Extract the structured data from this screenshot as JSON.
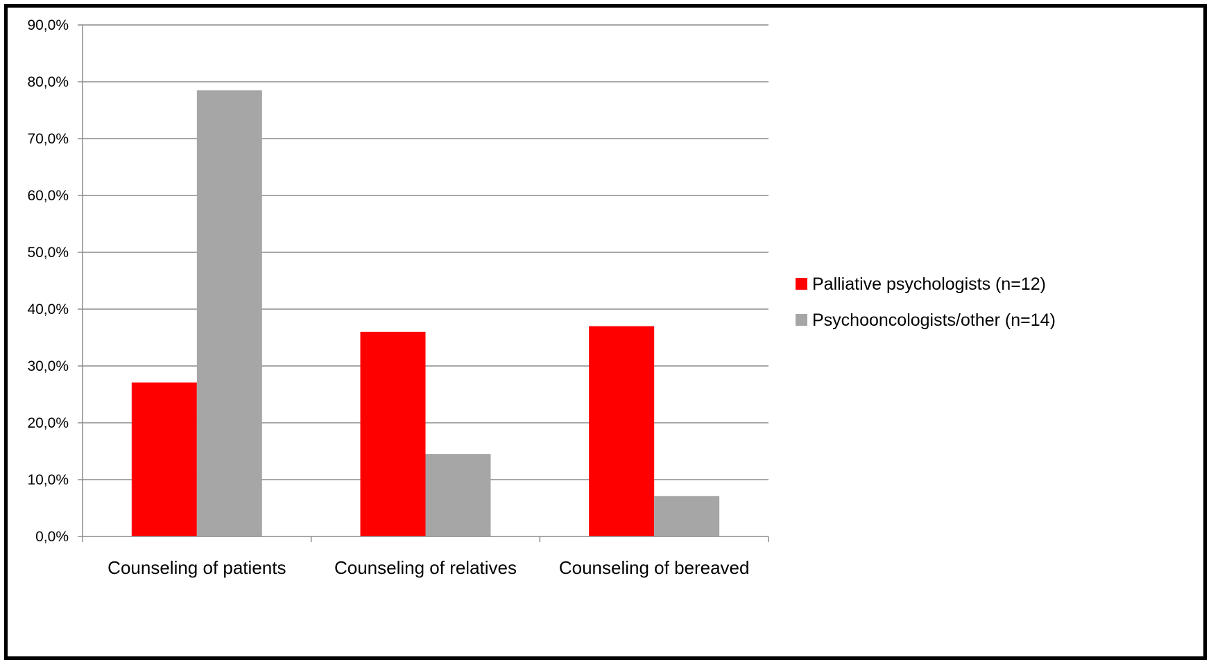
{
  "chart_data": {
    "type": "bar",
    "title": "",
    "xlabel": "",
    "ylabel": "",
    "categories": [
      "Counseling of patients",
      "Counseling of relatives",
      "Counseling of bereaved"
    ],
    "series": [
      {
        "name": "Palliative psychologists (n=12)",
        "color": "#ff0000",
        "values": [
          27.1,
          36.0,
          37.0
        ]
      },
      {
        "name": "Psychooncologists/other (n=14)",
        "color": "#a6a6a6",
        "values": [
          78.5,
          14.5,
          7.1
        ]
      }
    ],
    "ylim": [
      0,
      90
    ],
    "yticks": [
      "0,0%",
      "10,0%",
      "20,0%",
      "30,0%",
      "40,0%",
      "50,0%",
      "60,0%",
      "70,0%",
      "80,0%",
      "90,0%"
    ],
    "grid": true,
    "legend_position": "right"
  }
}
